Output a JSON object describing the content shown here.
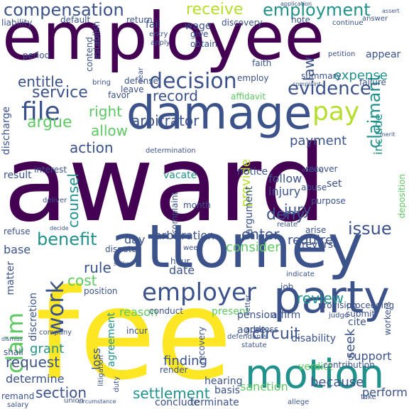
{
  "palette": [
    "#440154",
    "#3b528b",
    "#21918c",
    "#5ec962",
    "#fde725"
  ],
  "words": [
    {
      "text": "award",
      "color": "#440154"
    },
    {
      "text": "fee",
      "color": "#fde725"
    },
    {
      "text": "employee",
      "color": "#440154"
    },
    {
      "text": "attorney",
      "color": "#3b528b"
    },
    {
      "text": "damage",
      "color": "#3b528b"
    },
    {
      "text": "party",
      "color": "#3b528b"
    },
    {
      "text": "motion",
      "color": "#21918c"
    },
    {
      "text": "employer",
      "color": "#3b528b"
    },
    {
      "text": "claim",
      "color": "#5ec962"
    },
    {
      "text": "work",
      "color": "#3b528b"
    },
    {
      "text": "decision",
      "color": "#3b528b"
    },
    {
      "text": "file",
      "color": "#3b528b"
    },
    {
      "text": "pay",
      "color": "#b5de2b"
    },
    {
      "text": "evidence",
      "color": "#3b528b"
    },
    {
      "text": "compensation",
      "color": "#3b528b"
    },
    {
      "text": "employment",
      "color": "#21918c"
    },
    {
      "text": "receive",
      "color": "#b5de2b"
    },
    {
      "text": "service",
      "color": "#3b528b"
    },
    {
      "text": "record",
      "color": "#3b528b"
    },
    {
      "text": "entitle",
      "color": "#3b528b"
    },
    {
      "text": "arbitrator",
      "color": "#3b528b"
    },
    {
      "text": "action",
      "color": "#3b528b"
    },
    {
      "text": "benefit",
      "color": "#21918c"
    },
    {
      "text": "issue",
      "color": "#3b528b"
    },
    {
      "text": "section",
      "color": "#3b528b"
    },
    {
      "text": "circuit",
      "color": "#3b528b"
    },
    {
      "text": "settlement",
      "color": "#21918c"
    },
    {
      "text": "claimant",
      "color": "#21918c"
    },
    {
      "text": "review",
      "color": "#21918c"
    },
    {
      "text": "request",
      "color": "#3b528b"
    },
    {
      "text": "argue",
      "color": "#5ec962"
    },
    {
      "text": "law",
      "color": "#3b528b"
    },
    {
      "text": "deny",
      "color": "#3b528b"
    },
    {
      "text": "enter",
      "color": "#3b528b"
    },
    {
      "text": "provide",
      "color": "#b5de2b"
    },
    {
      "text": "expense",
      "color": "#21918c"
    },
    {
      "text": "payment",
      "color": "#3b528b"
    },
    {
      "text": "rule",
      "color": "#3b528b"
    },
    {
      "text": "cost",
      "color": "#5ec962"
    },
    {
      "text": "right",
      "color": "#5ec962"
    },
    {
      "text": "allow",
      "color": "#5ec962"
    },
    {
      "text": "counsel",
      "color": "#21918c"
    },
    {
      "text": "injury",
      "color": "#3b528b"
    },
    {
      "text": "jury",
      "color": "#3b528b"
    },
    {
      "text": "follow",
      "color": "#3b528b"
    },
    {
      "text": "require",
      "color": "#3b528b"
    },
    {
      "text": "consider",
      "color": "#5ec962"
    },
    {
      "text": "arbitration",
      "color": "#3b528b"
    },
    {
      "text": "day",
      "color": "#3b528b"
    },
    {
      "text": "grant",
      "color": "#21918c"
    },
    {
      "text": "determine",
      "color": "#3b528b"
    },
    {
      "text": "finding",
      "color": "#3b528b"
    },
    {
      "text": "sanction",
      "color": "#5ec962"
    },
    {
      "text": "because",
      "color": "#3b528b"
    },
    {
      "text": "include",
      "color": "#21918c"
    },
    {
      "text": "seek",
      "color": "#3b528b"
    },
    {
      "text": "support",
      "color": "#3b528b"
    },
    {
      "text": "disability",
      "color": "#3b528b"
    },
    {
      "text": "affirm",
      "color": "#3b528b"
    },
    {
      "text": "agree",
      "color": "#3b528b"
    },
    {
      "text": "date",
      "color": "#3b528b"
    },
    {
      "text": "reason",
      "color": "#5ec962"
    },
    {
      "text": "present",
      "color": "#5ec962"
    },
    {
      "text": "pension",
      "color": "#3b528b"
    },
    {
      "text": "loss",
      "color": "#3b528b"
    },
    {
      "text": "agreement",
      "color": "#21918c"
    },
    {
      "text": "discretion",
      "color": "#3b528b"
    },
    {
      "text": "matter",
      "color": "#3b528b"
    },
    {
      "text": "base",
      "color": "#3b528b"
    },
    {
      "text": "result",
      "color": "#3b528b"
    },
    {
      "text": "discharge",
      "color": "#3b528b"
    },
    {
      "text": "interest",
      "color": "#3b528b"
    },
    {
      "text": "conclude",
      "color": "#3b528b"
    },
    {
      "text": "terminate",
      "color": "#3b528b"
    },
    {
      "text": "hearing",
      "color": "#3b528b"
    },
    {
      "text": "basis",
      "color": "#3b528b"
    },
    {
      "text": "verdict",
      "color": "#5ec962"
    },
    {
      "text": "contribution",
      "color": "#3b528b"
    },
    {
      "text": "perform",
      "color": "#3b528b"
    },
    {
      "text": "union",
      "color": "#3b528b"
    },
    {
      "text": "fail",
      "color": "#3b528b"
    },
    {
      "text": "wage",
      "color": "#3b528b"
    },
    {
      "text": "give",
      "color": "#3b528b"
    },
    {
      "text": "obtain",
      "color": "#3b528b"
    },
    {
      "text": "discovery",
      "color": "#3b528b"
    },
    {
      "text": "default",
      "color": "#3b528b"
    },
    {
      "text": "return",
      "color": "#3b528b"
    },
    {
      "text": "liability",
      "color": "#3b528b"
    },
    {
      "text": "establish",
      "color": "#3b528b"
    },
    {
      "text": "period",
      "color": "#3b528b"
    },
    {
      "text": "contend",
      "color": "#3b528b"
    },
    {
      "text": "apply",
      "color": "#3b528b"
    },
    {
      "text": "entry",
      "color": "#3b528b"
    },
    {
      "text": "note",
      "color": "#3b528b"
    },
    {
      "text": "continue",
      "color": "#3b528b"
    },
    {
      "text": "answer",
      "color": "#3b528b"
    },
    {
      "text": "assert",
      "color": "#3b528b"
    },
    {
      "text": "petition",
      "color": "#3b528b"
    },
    {
      "text": "appear",
      "color": "#3b528b"
    },
    {
      "text": "summary",
      "color": "#3b528b"
    },
    {
      "text": "failure",
      "color": "#3b528b"
    },
    {
      "text": "deposition",
      "color": "#5ec962"
    },
    {
      "text": "complaint",
      "color": "#3b528b"
    },
    {
      "text": "month",
      "color": "#3b528b"
    },
    {
      "text": "vacate",
      "color": "#21918c"
    },
    {
      "text": "notice",
      "color": "#3b528b"
    },
    {
      "text": "recover",
      "color": "#3b528b"
    },
    {
      "text": "affidavit",
      "color": "#5ec962"
    },
    {
      "text": "employ",
      "color": "#3b528b"
    },
    {
      "text": "leave",
      "color": "#3b528b"
    },
    {
      "text": "favor",
      "color": "#3b528b"
    },
    {
      "text": "dispute",
      "color": "#3b528b"
    },
    {
      "text": "position",
      "color": "#3b528b"
    },
    {
      "text": "hour",
      "color": "#3b528b"
    },
    {
      "text": "incur",
      "color": "#3b528b"
    },
    {
      "text": "reverse",
      "color": "#3b528b"
    },
    {
      "text": "proceeding",
      "color": "#3b528b"
    },
    {
      "text": "provision",
      "color": "#3b528b"
    },
    {
      "text": "submit",
      "color": "#3b528b"
    },
    {
      "text": "cite",
      "color": "#3b528b"
    },
    {
      "text": "job",
      "color": "#3b528b"
    },
    {
      "text": "recovery",
      "color": "#3b528b"
    },
    {
      "text": "address",
      "color": "#3b528b"
    },
    {
      "text": "company",
      "color": "#3b528b"
    },
    {
      "text": "litigation",
      "color": "#3b528b"
    },
    {
      "text": "shall",
      "color": "#3b528b"
    },
    {
      "text": "remand",
      "color": "#3b528b"
    },
    {
      "text": "salary",
      "color": "#3b528b"
    },
    {
      "text": "render",
      "color": "#3b528b"
    },
    {
      "text": "conduct",
      "color": "#3b528b"
    },
    {
      "text": "refuse",
      "color": "#3b528b"
    },
    {
      "text": "argument",
      "color": "#3b528b"
    },
    {
      "text": "defense",
      "color": "#3b528b"
    },
    {
      "text": "judge",
      "color": "#3b528b"
    },
    {
      "text": "workers",
      "color": "#3b528b"
    },
    {
      "text": "determination",
      "color": "#3b528b"
    },
    {
      "text": "indicate",
      "color": "#3b528b"
    },
    {
      "text": "deliver",
      "color": "#3b528b"
    },
    {
      "text": "take",
      "color": "#3b528b"
    },
    {
      "text": "faith",
      "color": "#3b528b"
    },
    {
      "text": "year",
      "color": "#3b528b"
    },
    {
      "text": "purpose",
      "color": "#3b528b"
    },
    {
      "text": "set",
      "color": "#3b528b"
    },
    {
      "text": "abuse",
      "color": "#3b528b"
    },
    {
      "text": "arise",
      "color": "#3b528b"
    },
    {
      "text": "relate",
      "color": "#3b528b"
    },
    {
      "text": "duty",
      "color": "#3b528b"
    },
    {
      "text": "strike",
      "color": "#3b528b"
    },
    {
      "text": "allege",
      "color": "#3b528b"
    },
    {
      "text": "letter",
      "color": "#3b528b"
    },
    {
      "text": "statute",
      "color": "#3b528b"
    },
    {
      "text": "defendants",
      "color": "#3b528b"
    },
    {
      "text": "week",
      "color": "#3b528b"
    },
    {
      "text": "bring",
      "color": "#3b528b"
    },
    {
      "text": "decide",
      "color": "#3b528b"
    },
    {
      "text": "earning",
      "color": "#3b528b"
    },
    {
      "text": "merit",
      "color": "#3b528b"
    },
    {
      "text": "dismiss",
      "color": "#3b528b"
    },
    {
      "text": "application",
      "color": "#3b528b"
    },
    {
      "text": "complaint",
      "color": "#3b528b"
    },
    {
      "text": "circumstance",
      "color": "#3b528b"
    }
  ]
}
